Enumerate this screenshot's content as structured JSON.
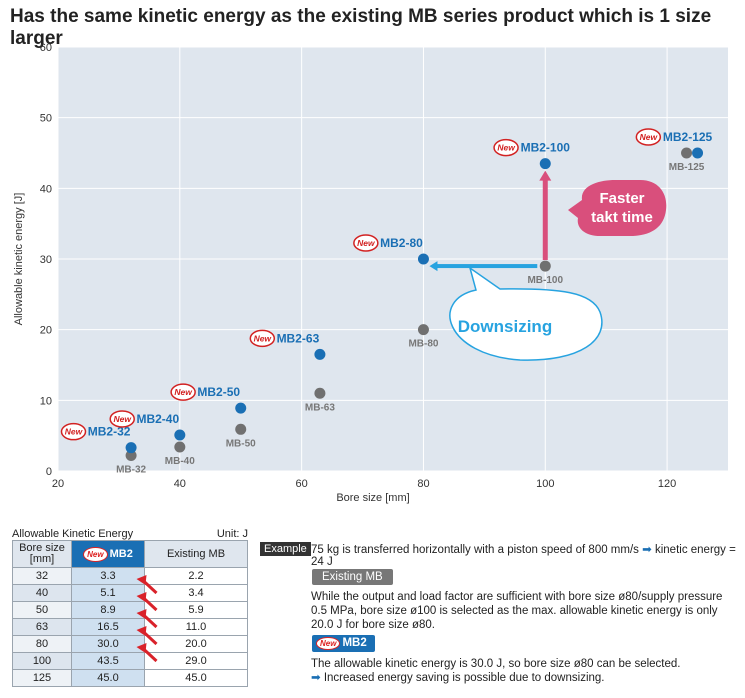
{
  "title": "Has the same kinetic energy as the existing MB series product which is 1 size larger",
  "chart_data": {
    "type": "scatter",
    "xlabel": "Bore size [mm]",
    "ylabel": "Allowable kinetic energy [J]",
    "xlim": [
      20,
      130
    ],
    "ylim": [
      0,
      60
    ],
    "xticks": [
      20,
      40,
      60,
      80,
      100,
      120
    ],
    "yticks": [
      0,
      10,
      20,
      30,
      40,
      50,
      60
    ],
    "grid": true,
    "series": [
      {
        "name": "MB2",
        "color": "#1a6fb4",
        "points": [
          {
            "x": 32,
            "y": 3.3,
            "label": "MB2-32"
          },
          {
            "x": 40,
            "y": 5.1,
            "label": "MB2-40"
          },
          {
            "x": 50,
            "y": 8.9,
            "label": "MB2-50"
          },
          {
            "x": 63,
            "y": 16.5,
            "label": "MB2-63"
          },
          {
            "x": 80,
            "y": 30.0,
            "label": "MB2-80"
          },
          {
            "x": 100,
            "y": 43.5,
            "label": "MB2-100"
          },
          {
            "x": 125,
            "y": 45.0,
            "label": "MB2-125"
          }
        ]
      },
      {
        "name": "MB",
        "color": "#707070",
        "points": [
          {
            "x": 32,
            "y": 2.2,
            "label": "MB-32"
          },
          {
            "x": 40,
            "y": 3.4,
            "label": "MB-40"
          },
          {
            "x": 50,
            "y": 5.9,
            "label": "MB-50"
          },
          {
            "x": 63,
            "y": 11.0,
            "label": "MB-63"
          },
          {
            "x": 80,
            "y": 20.0,
            "label": "MB-80"
          },
          {
            "x": 100,
            "y": 29.0,
            "label": "MB-100"
          },
          {
            "x": 125,
            "y": 45.0,
            "label": "MB-125"
          }
        ]
      }
    ],
    "annotations": {
      "new_badge": "New",
      "downsizing": "Downsizing",
      "faster_line1": "Faster",
      "faster_line2": "takt time"
    },
    "colors": {
      "plot_bg": "#dfe6ee",
      "grid": "#ffffff",
      "mb2": "#1a6fb4",
      "mb": "#707070",
      "blue_arrow": "#27a3e0",
      "pink": "#d94f7c",
      "new_red": "#d22222"
    }
  },
  "table": {
    "caption": "Allowable Kinetic Energy",
    "unit": "Unit: J",
    "headers": [
      "Bore size\n[mm]",
      "MB2",
      "Existing MB"
    ],
    "rows": [
      [
        "32",
        "3.3",
        "2.2"
      ],
      [
        "40",
        "5.1",
        "3.4"
      ],
      [
        "50",
        "8.9",
        "5.9"
      ],
      [
        "63",
        "16.5",
        "11.0"
      ],
      [
        "80",
        "30.0",
        "20.0"
      ],
      [
        "100",
        "43.5",
        "29.0"
      ],
      [
        "125",
        "45.0",
        "45.0"
      ]
    ]
  },
  "example": {
    "tag": "Example",
    "text": "75 kg is transferred horizontally with a piston speed of 800 mm/s",
    "result": "kinetic energy = 24 J"
  },
  "existing": {
    "tag": "Existing MB",
    "text": "While the output and load factor are sufficient with bore size ø80/supply pressure 0.5 MPa, bore size ø100 is selected as the max. allowable kinetic energy is only 20.0 J for bore size ø80."
  },
  "mb2": {
    "tag": "MB2",
    "line1": "The allowable kinetic energy is 30.0 J, so bore size ø80 can be selected.",
    "line2": "Increased energy saving is possible due to downsizing."
  }
}
